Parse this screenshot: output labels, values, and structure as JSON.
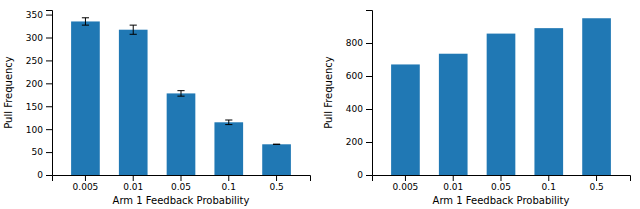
{
  "chart_data": [
    {
      "type": "bar",
      "categories": [
        "0.005",
        "0.01",
        "0.05",
        "0.1",
        "0.5"
      ],
      "values": [
        335,
        317,
        178,
        115,
        67
      ],
      "errors": [
        8,
        10,
        6,
        5,
        0
      ],
      "color": "#2078B4",
      "xlabel": "Arm 1 Feedback Probability",
      "ylabel": "Pull Frequency",
      "ylim": [
        0,
        360
      ],
      "yticks": [
        0,
        50,
        100,
        150,
        200,
        250,
        300,
        350
      ]
    },
    {
      "type": "bar",
      "categories": [
        "0.005",
        "0.01",
        "0.05",
        "0.1",
        "0.5"
      ],
      "values": [
        670,
        735,
        857,
        890,
        950
      ],
      "color": "#2078B4",
      "xlabel": "Arm 1 Feedback Probability",
      "ylabel": "Pull Frequency",
      "ylim": [
        0,
        1000
      ],
      "yticks": [
        0,
        200,
        400,
        600,
        800
      ]
    }
  ]
}
